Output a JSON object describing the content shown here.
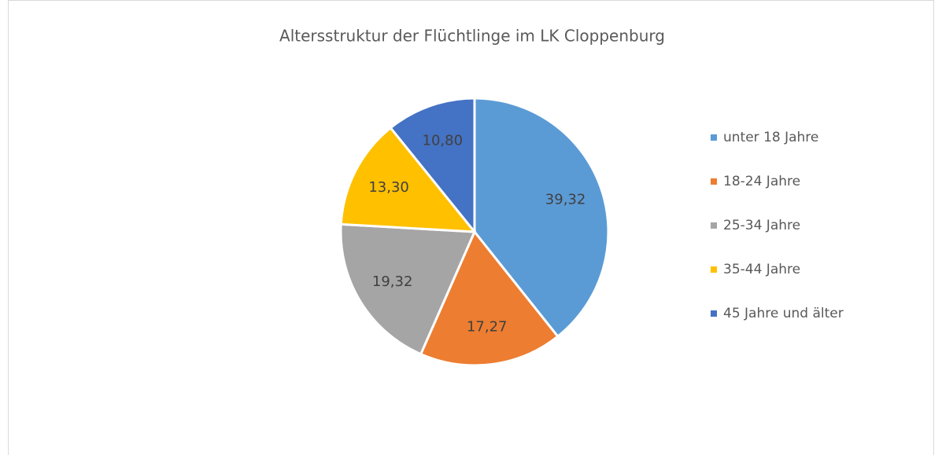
{
  "chart_data": {
    "type": "pie",
    "title": "Altersstruktur der Flüchtlinge im LK Cloppenburg",
    "categories": [
      "unter 18 Jahre",
      "18-24 Jahre",
      "25-34 Jahre",
      "35-44 Jahre",
      "45 Jahre und älter"
    ],
    "values": [
      39.32,
      17.27,
      19.32,
      13.3,
      10.8
    ],
    "value_labels": [
      "39,32",
      "17,27",
      "19,32",
      "13,30",
      "10,80"
    ],
    "colors": [
      "#5b9bd5",
      "#ed7d31",
      "#a5a5a5",
      "#ffc000",
      "#4472c4"
    ],
    "legend": "right"
  }
}
